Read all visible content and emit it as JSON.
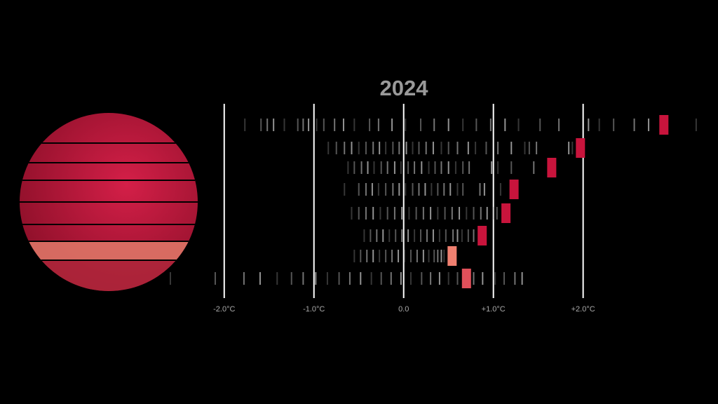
{
  "chart_data": {
    "type": "strip",
    "title": "2024",
    "xlim": [
      -2.6,
      3.3
    ],
    "xticks": [
      {
        "value": -2,
        "label": "-2.0°C"
      },
      {
        "value": -1,
        "label": "-1.0°C"
      },
      {
        "value": 0,
        "label": "0.0"
      },
      {
        "value": 1,
        "label": "+1.0°C"
      },
      {
        "value": 2,
        "label": "+2.0°C"
      }
    ],
    "grid": true,
    "history_color": "#9a9a9a",
    "rows": [
      {
        "history": [
          -1.77,
          -1.59,
          -1.52,
          -1.45,
          -1.33,
          -1.18,
          -1.12,
          -1.06,
          -0.97,
          -0.89,
          -0.77,
          -0.67,
          -0.55,
          -0.38,
          -0.28,
          -0.13,
          0.02,
          0.19,
          0.34,
          0.5,
          0.66,
          0.81,
          0.97,
          1.13,
          1.28,
          1.52,
          1.73,
          2.06,
          2.18,
          2.34,
          2.57,
          2.73,
          3.26
        ],
        "value": 2.9,
        "color": "#c8143c"
      },
      {
        "history": [
          -0.84,
          -0.75,
          -0.66,
          -0.58,
          -0.5,
          -0.42,
          -0.34,
          -0.27,
          -0.2,
          -0.12,
          -0.05,
          0.03,
          0.1,
          0.17,
          0.25,
          0.33,
          0.42,
          0.5,
          0.6,
          0.72,
          0.8,
          0.92,
          1.05,
          1.2,
          1.35,
          1.4,
          1.48,
          1.84,
          1.88
        ],
        "value": 1.97,
        "color": "#c8143c"
      },
      {
        "history": [
          -0.62,
          -0.55,
          -0.47,
          -0.4,
          -0.33,
          -0.25,
          -0.18,
          -0.1,
          -0.03,
          0.05,
          0.12,
          0.2,
          0.28,
          0.35,
          0.42,
          0.5,
          0.58,
          0.66,
          0.73,
          0.98,
          1.05,
          1.2,
          1.45
        ],
        "value": 1.65,
        "color": "#c8143c"
      },
      {
        "history": [
          -0.66,
          -0.5,
          -0.42,
          -0.35,
          -0.28,
          -0.2,
          -0.12,
          -0.05,
          0.02,
          0.1,
          0.17,
          0.24,
          0.31,
          0.38,
          0.45,
          0.52,
          0.6,
          0.66,
          0.85,
          0.9,
          1.08
        ],
        "value": 1.23,
        "color": "#c8143c"
      },
      {
        "history": [
          -0.58,
          -0.5,
          -0.42,
          -0.34,
          -0.26,
          -0.18,
          -0.1,
          -0.02,
          0.06,
          0.14,
          0.22,
          0.3,
          0.38,
          0.46,
          0.54,
          0.62,
          0.7,
          0.78,
          0.86,
          0.93,
          1.0,
          1.04
        ],
        "value": 1.14,
        "color": "#c8143c"
      },
      {
        "history": [
          -0.44,
          -0.37,
          -0.3,
          -0.23,
          -0.16,
          -0.09,
          -0.02,
          0.05,
          0.12,
          0.19,
          0.26,
          0.33,
          0.4,
          0.47,
          0.55,
          0.6,
          0.65,
          0.72,
          0.78
        ],
        "value": 0.875,
        "color": "#c8143c"
      },
      {
        "history": [
          -0.55,
          -0.48,
          -0.41,
          -0.34,
          -0.27,
          -0.2,
          -0.13,
          -0.06,
          0.01,
          0.08,
          0.15,
          0.22,
          0.28,
          0.34,
          0.38,
          0.42,
          0.45
        ],
        "value": 0.54,
        "color": "#f08070"
      },
      {
        "history": [
          -2.6,
          -2.1,
          -1.78,
          -1.6,
          -1.41,
          -1.25,
          -1.12,
          -0.98,
          -0.85,
          -0.72,
          -0.6,
          -0.48,
          -0.36,
          -0.25,
          -0.14,
          -0.03,
          0.08,
          0.2,
          0.3,
          0.4,
          0.5,
          0.6,
          0.78,
          0.88,
          1.02,
          1.12,
          1.24,
          1.32
        ],
        "value": 0.7,
        "color": "#e0505a"
      }
    ]
  }
}
